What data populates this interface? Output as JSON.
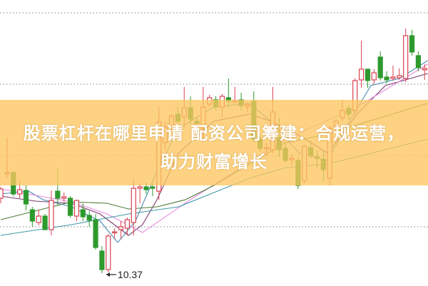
{
  "banner": {
    "title_line1": "股票杠杆在哪里申请 配资公司筹建：合规运营，",
    "title_line2": "助力财富增长"
  },
  "chart_data": {
    "type": "candlestick",
    "title": "",
    "xlabel": "",
    "ylabel": "",
    "ylim": [
      10.19,
      14.2
    ],
    "grid": true,
    "grid_lines": [
      14.02,
      13.02,
      12.02,
      11.02
    ],
    "colors": {
      "up": "#d9404f",
      "down": "#2e9a2e",
      "grid": "#9a9a9a",
      "banner": "#fcc660"
    },
    "candles": [
      [
        11.42,
        11.58,
        11.35,
        11.55
      ],
      [
        11.76,
        12.27,
        11.7,
        11.78
      ],
      [
        11.78,
        11.8,
        11.45,
        11.48
      ],
      [
        11.48,
        11.67,
        11.42,
        11.54
      ],
      [
        11.53,
        11.6,
        11.25,
        11.34
      ],
      [
        11.26,
        11.3,
        11.02,
        11.1
      ],
      [
        11.08,
        11.26,
        11.04,
        11.17
      ],
      [
        11.17,
        11.2,
        10.98,
        10.98
      ],
      [
        10.98,
        11.53,
        10.9,
        11.39
      ],
      [
        11.52,
        11.84,
        11.32,
        11.42
      ],
      [
        11.42,
        11.5,
        11.37,
        11.44
      ],
      [
        11.42,
        11.45,
        11.15,
        11.18
      ],
      [
        11.17,
        11.4,
        11.1,
        11.39
      ],
      [
        11.26,
        11.35,
        11.1,
        11.16
      ],
      [
        11.18,
        11.24,
        11.02,
        11.11
      ],
      [
        11.12,
        11.2,
        10.7,
        10.73
      ],
      [
        10.68,
        10.75,
        10.37,
        10.42
      ],
      [
        10.42,
        10.92,
        10.38,
        10.89
      ],
      [
        10.94,
        11.0,
        10.85,
        10.95
      ],
      [
        10.98,
        11.1,
        10.85,
        11.02
      ],
      [
        11.0,
        11.15,
        10.9,
        11.12
      ],
      [
        11.08,
        11.7,
        10.9,
        11.56
      ],
      [
        11.56,
        11.63,
        11.35,
        11.58
      ],
      [
        11.58,
        11.64,
        11.48,
        11.54
      ],
      [
        11.58,
        11.63,
        11.45,
        11.56
      ],
      [
        11.52,
        12.7,
        11.4,
        12.49
      ],
      [
        12.2,
        12.5,
        12.1,
        12.42
      ],
      [
        12.42,
        12.6,
        12.35,
        12.57
      ],
      [
        12.6,
        12.7,
        12.45,
        12.5
      ],
      [
        12.56,
        12.98,
        12.4,
        12.69
      ],
      [
        12.69,
        12.85,
        12.45,
        12.53
      ],
      [
        12.5,
        12.55,
        12.4,
        12.47
      ],
      [
        12.4,
        12.98,
        12.2,
        12.7
      ],
      [
        12.74,
        12.87,
        12.7,
        12.83
      ],
      [
        12.8,
        12.85,
        12.65,
        12.7
      ],
      [
        12.7,
        12.88,
        12.55,
        12.85
      ],
      [
        12.83,
        13.1,
        12.7,
        12.78
      ],
      [
        12.77,
        12.98,
        12.75,
        12.79
      ],
      [
        12.8,
        12.9,
        12.65,
        12.72
      ],
      [
        12.7,
        12.77,
        12.62,
        12.73
      ],
      [
        12.78,
        12.92,
        12.2,
        12.25
      ],
      [
        12.25,
        12.3,
        12.07,
        12.12
      ],
      [
        12.12,
        12.2,
        12.02,
        12.13
      ],
      [
        12.1,
        12.98,
        12.05,
        12.63
      ],
      [
        12.27,
        12.55,
        12.0,
        12.1
      ],
      [
        12.12,
        12.2,
        11.92,
        11.95
      ],
      [
        11.96,
        12.04,
        11.88,
        11.98
      ],
      [
        11.95,
        12.0,
        11.55,
        11.6
      ],
      [
        11.67,
        12.17,
        11.63,
        12.15
      ],
      [
        12.13,
        12.23,
        11.98,
        12.02
      ],
      [
        12.0,
        12.1,
        11.83,
        11.98
      ],
      [
        11.97,
        12.08,
        11.65,
        11.82
      ],
      [
        11.7,
        12.44,
        11.6,
        12.4
      ],
      [
        12.42,
        12.53,
        12.38,
        12.5
      ],
      [
        12.55,
        12.8,
        12.5,
        12.65
      ],
      [
        12.68,
        12.73,
        12.52,
        12.6
      ],
      [
        12.65,
        13.1,
        12.6,
        13.07
      ],
      [
        13.08,
        13.63,
        12.97,
        13.23
      ],
      [
        13.23,
        13.23,
        12.97,
        13.07
      ],
      [
        13.08,
        13.23,
        13.02,
        13.18
      ],
      [
        13.4,
        13.48,
        13.07,
        13.11
      ],
      [
        13.12,
        13.2,
        13.03,
        13.08
      ],
      [
        13.1,
        13.28,
        13.07,
        13.12
      ],
      [
        13.11,
        13.24,
        13.08,
        13.14
      ],
      [
        13.1,
        13.8,
        13.05,
        13.7
      ],
      [
        13.7,
        13.78,
        13.42,
        13.47
      ],
      [
        13.42,
        13.48,
        13.2,
        13.25
      ],
      [
        13.22,
        13.3,
        13.08,
        13.24
      ]
    ],
    "candle_format": [
      "open",
      "high",
      "low",
      "close"
    ],
    "moving_averages": [
      {
        "color": "#4a8fb5",
        "points": [
          [
            0,
            11.48
          ],
          [
            4.4,
            11.52
          ],
          [
            6.7,
            11.4
          ],
          [
            11.2,
            11.3
          ],
          [
            15.7,
            11.1
          ],
          [
            18.5,
            10.8
          ],
          [
            21.3,
            11.1
          ],
          [
            24.7,
            11.8
          ],
          [
            28.1,
            12.4
          ],
          [
            33.7,
            12.7
          ],
          [
            39.3,
            12.75
          ],
          [
            42.7,
            12.5
          ],
          [
            47.2,
            12.05
          ],
          [
            51.7,
            11.95
          ],
          [
            55.1,
            12.5
          ],
          [
            58.5,
            13.0
          ],
          [
            63,
            13.1
          ],
          [
            67.5,
            13.35
          ]
        ]
      },
      {
        "color": "#7a3a6e",
        "points": [
          [
            0,
            11.45
          ],
          [
            5.5,
            11.38
          ],
          [
            11.2,
            11.35
          ],
          [
            15.7,
            11.2
          ],
          [
            20.2,
            10.9
          ],
          [
            22.4,
            11.05
          ],
          [
            24.7,
            11.4
          ],
          [
            28.1,
            12.05
          ],
          [
            33.7,
            12.5
          ],
          [
            39.3,
            12.6
          ],
          [
            42.7,
            12.5
          ],
          [
            47.2,
            12.3
          ],
          [
            51.7,
            12.05
          ],
          [
            56.3,
            12.6
          ],
          [
            60.8,
            13.0
          ],
          [
            67.5,
            13.17
          ]
        ]
      },
      {
        "color": "#e58ae0",
        "points": [
          [
            0,
            11.55
          ],
          [
            11.2,
            11.37
          ],
          [
            16.8,
            11.2
          ],
          [
            22.4,
            10.94
          ],
          [
            30.3,
            11.42
          ],
          [
            37.1,
            11.8
          ],
          [
            45,
            12.25
          ],
          [
            56.3,
            12.7
          ],
          [
            61.9,
            13.0
          ],
          [
            67.5,
            13.3
          ]
        ]
      },
      {
        "color": "#4f7a3a",
        "points": [
          [
            0,
            11.12
          ],
          [
            11.2,
            11.37
          ],
          [
            16.8,
            11.35
          ],
          [
            20.2,
            11.27
          ],
          [
            24.7,
            11.3
          ],
          [
            29.2,
            11.4
          ],
          [
            33.7,
            11.6
          ],
          [
            39.3,
            11.9
          ],
          [
            45,
            12.2
          ],
          [
            50.6,
            12.3
          ],
          [
            56.3,
            12.45
          ],
          [
            67.5,
            12.75
          ]
        ]
      },
      {
        "color": "#3f9aa8",
        "points": [
          [
            0,
            10.9
          ],
          [
            11.2,
            11.05
          ],
          [
            20.2,
            11.2
          ],
          [
            28.1,
            11.3
          ],
          [
            33.7,
            11.5
          ],
          [
            39.3,
            11.7
          ],
          [
            45,
            11.85
          ],
          [
            51.7,
            11.9
          ],
          [
            67.5,
            12.25
          ]
        ]
      }
    ],
    "annotations": [
      {
        "text": "10.37",
        "candle": 16,
        "price": 10.37
      }
    ]
  }
}
